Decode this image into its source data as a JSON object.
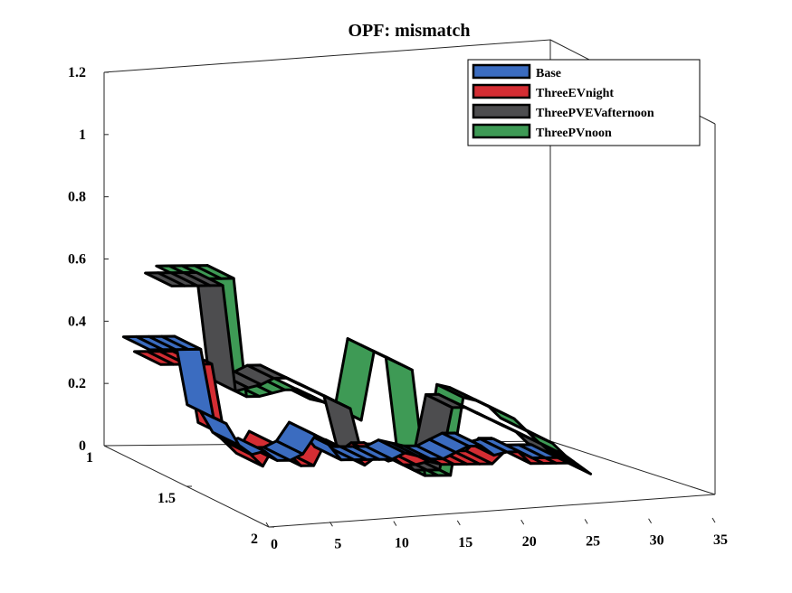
{
  "chart_data": {
    "type": "ribbon3d",
    "title": "OPF: mismatch",
    "xlabel": "",
    "ylabel": "",
    "zlabel": "",
    "x_ticks": [
      "0",
      "5",
      "10",
      "15",
      "20",
      "25",
      "30",
      "35"
    ],
    "y_ticks": [
      "1",
      "1.5",
      "2"
    ],
    "z_ticks": [
      "0",
      "0.2",
      "0.4",
      "0.6",
      "0.8",
      "1",
      "1.2"
    ],
    "xlim": [
      0,
      35
    ],
    "ylim": [
      1,
      2
    ],
    "zlim": [
      0,
      1.2
    ],
    "legend_position": "top-right",
    "series": [
      {
        "name": "Base",
        "color": "#3b6cc0",
        "values": [
          0.36,
          0.36,
          0.36,
          0.36,
          0.36,
          0.14,
          0.12,
          0.05,
          0.02,
          0.03,
          0.0,
          0.0,
          0.02,
          0.08,
          0.05,
          0.0,
          0.0,
          0.0,
          0.0,
          0.0,
          0.02,
          0.01,
          0.0,
          0.0,
          0.02,
          0.04,
          0.04,
          0.01,
          0.02,
          0.02,
          0.0,
          0.0,
          0.0
        ]
      },
      {
        "name": "ThreeEVnight",
        "color": "#d42d33",
        "values": [
          0.33,
          0.33,
          0.33,
          0.33,
          0.33,
          0.1,
          0.08,
          0.04,
          0.0,
          0.07,
          0.04,
          0.0,
          0.0,
          0.08,
          0.05,
          0.04,
          0.0,
          0.03,
          0.03,
          0.0,
          0.0,
          0.01,
          0.0,
          0.0,
          0.0,
          0.0,
          0.0,
          0.04,
          0.04,
          0.0,
          0.0,
          0.0,
          0.0
        ]
      },
      {
        "name": "ThreePVEVafternoon",
        "color": "#4d4d4f",
        "values": [
          0.6,
          0.6,
          0.6,
          0.6,
          0.6,
          0.26,
          0.27,
          0.28,
          0.3,
          0.3,
          0.28,
          0.26,
          0.24,
          0.22,
          0.2,
          0.04,
          0.05,
          0.03,
          0.04,
          0.0,
          0.0,
          0.0,
          0.2,
          0.2,
          0.18,
          0.16,
          0.14,
          0.12,
          0.1,
          0.08,
          0.04,
          0.02,
          0.0
        ]
      },
      {
        "name": "ThreePVnoon",
        "color": "#3e9a55",
        "values": [
          0.64,
          0.64,
          0.64,
          0.64,
          0.64,
          0.26,
          0.26,
          0.27,
          0.28,
          0.28,
          0.25,
          0.24,
          0.22,
          0.2,
          0.18,
          0.4,
          0.38,
          0.36,
          0.34,
          0.0,
          0.0,
          0.0,
          0.25,
          0.24,
          0.22,
          0.2,
          0.18,
          0.14,
          0.12,
          0.1,
          0.06,
          0.03,
          0.0
        ]
      }
    ]
  }
}
